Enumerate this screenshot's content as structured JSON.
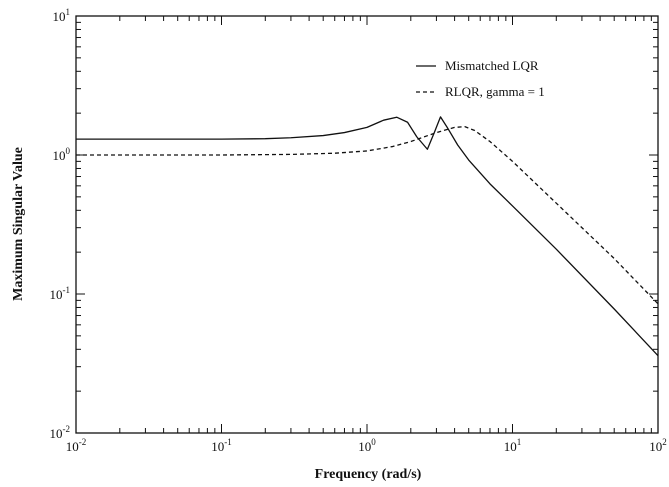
{
  "chart_data": {
    "type": "line",
    "title": "",
    "xlabel": "Frequency (rad/s)",
    "ylabel": "Maximum Singular Value",
    "xscale": "log",
    "yscale": "log",
    "xlim": [
      0.01,
      100
    ],
    "ylim": [
      0.01,
      10
    ],
    "grid": false,
    "legend_position": "top-right",
    "x_ticks": [
      {
        "value": 0.01,
        "base": "10",
        "exp": "-2"
      },
      {
        "value": 0.1,
        "base": "10",
        "exp": "-1"
      },
      {
        "value": 1,
        "base": "10",
        "exp": "0"
      },
      {
        "value": 10,
        "base": "10",
        "exp": "1"
      },
      {
        "value": 100,
        "base": "10",
        "exp": "2"
      }
    ],
    "y_ticks": [
      {
        "value": 0.01,
        "base": "10",
        "exp": "-2"
      },
      {
        "value": 0.1,
        "base": "10",
        "exp": "-1"
      },
      {
        "value": 1,
        "base": "10",
        "exp": "0"
      },
      {
        "value": 10,
        "base": "10",
        "exp": "1"
      }
    ],
    "series": [
      {
        "name": "Mismatched LQR",
        "style": "solid",
        "color": "#111111",
        "points": [
          [
            0.01,
            1.3
          ],
          [
            0.05,
            1.3
          ],
          [
            0.1,
            1.3
          ],
          [
            0.2,
            1.31
          ],
          [
            0.3,
            1.33
          ],
          [
            0.5,
            1.38
          ],
          [
            0.7,
            1.45
          ],
          [
            1.0,
            1.58
          ],
          [
            1.3,
            1.78
          ],
          [
            1.6,
            1.87
          ],
          [
            1.9,
            1.72
          ],
          [
            2.2,
            1.35
          ],
          [
            2.6,
            1.1
          ],
          [
            2.9,
            1.45
          ],
          [
            3.2,
            1.88
          ],
          [
            3.6,
            1.55
          ],
          [
            4.2,
            1.18
          ],
          [
            5.0,
            0.92
          ],
          [
            7.0,
            0.62
          ],
          [
            10,
            0.43
          ],
          [
            20,
            0.21
          ],
          [
            50,
            0.078
          ],
          [
            100,
            0.036
          ]
        ]
      },
      {
        "name": "RLQR, gamma = 1",
        "style": "dashed",
        "color": "#111111",
        "points": [
          [
            0.01,
            1.0
          ],
          [
            0.1,
            1.0
          ],
          [
            0.3,
            1.01
          ],
          [
            0.6,
            1.03
          ],
          [
            1.0,
            1.07
          ],
          [
            1.5,
            1.15
          ],
          [
            2.0,
            1.25
          ],
          [
            3.0,
            1.45
          ],
          [
            4.0,
            1.58
          ],
          [
            4.7,
            1.6
          ],
          [
            5.5,
            1.5
          ],
          [
            7.0,
            1.25
          ],
          [
            10,
            0.9
          ],
          [
            20,
            0.45
          ],
          [
            50,
            0.18
          ],
          [
            100,
            0.085
          ]
        ]
      }
    ]
  }
}
